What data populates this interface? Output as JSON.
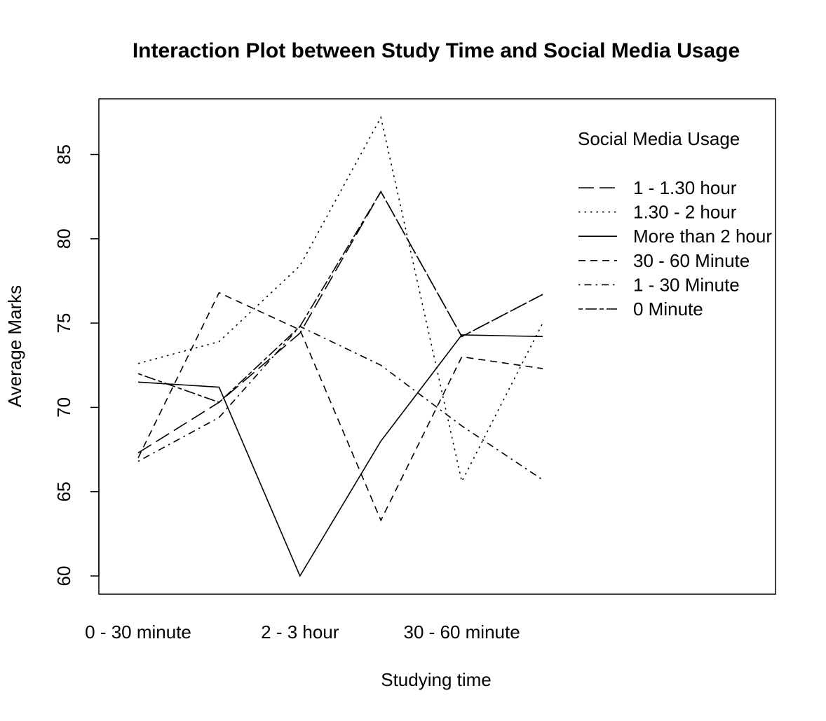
{
  "chart_data": {
    "type": "line",
    "title": "Interaction Plot between Study Time and Social Media Usage",
    "xlabel": "Studying time",
    "ylabel": "Average Marks",
    "ylim": [
      59,
      88.5
    ],
    "yticks": [
      60,
      65,
      70,
      75,
      80,
      85
    ],
    "x_tick_labels": [
      "0 - 30 minute",
      "2 - 3 hour",
      "30 - 60 minute"
    ],
    "x_tick_positions": [
      1,
      3,
      5
    ],
    "x": [
      1,
      2,
      3,
      4,
      5,
      6
    ],
    "legend_title": "Social Media Usage",
    "legend_position": "top-right",
    "grid": false,
    "series": [
      {
        "name": "1 - 1.30 hour",
        "dash": "longdash",
        "values": [
          67.3,
          70.3,
          74.4,
          82.8,
          74.2,
          76.7
        ]
      },
      {
        "name": "1.30 - 2 hour",
        "dash": "dotted",
        "values": [
          72.6,
          73.9,
          78.4,
          87.2,
          65.6,
          75.0
        ]
      },
      {
        "name": "More than 2 hour",
        "dash": "solid",
        "values": [
          71.5,
          71.2,
          60.0,
          68.0,
          74.3,
          74.2
        ]
      },
      {
        "name": "30 - 60 Minute",
        "dash": "dashed",
        "values": [
          67.0,
          76.8,
          74.6,
          63.3,
          73.0,
          72.3
        ]
      },
      {
        "name": "1 - 30 Minute",
        "dash": "dotdash",
        "values": [
          66.8,
          69.4,
          74.8,
          72.5,
          68.9,
          65.7
        ]
      },
      {
        "name": "0 Minute",
        "dash": "twodash",
        "values": [
          72.0,
          70.3,
          74.8,
          82.8,
          74.2,
          76.7
        ]
      }
    ]
  }
}
